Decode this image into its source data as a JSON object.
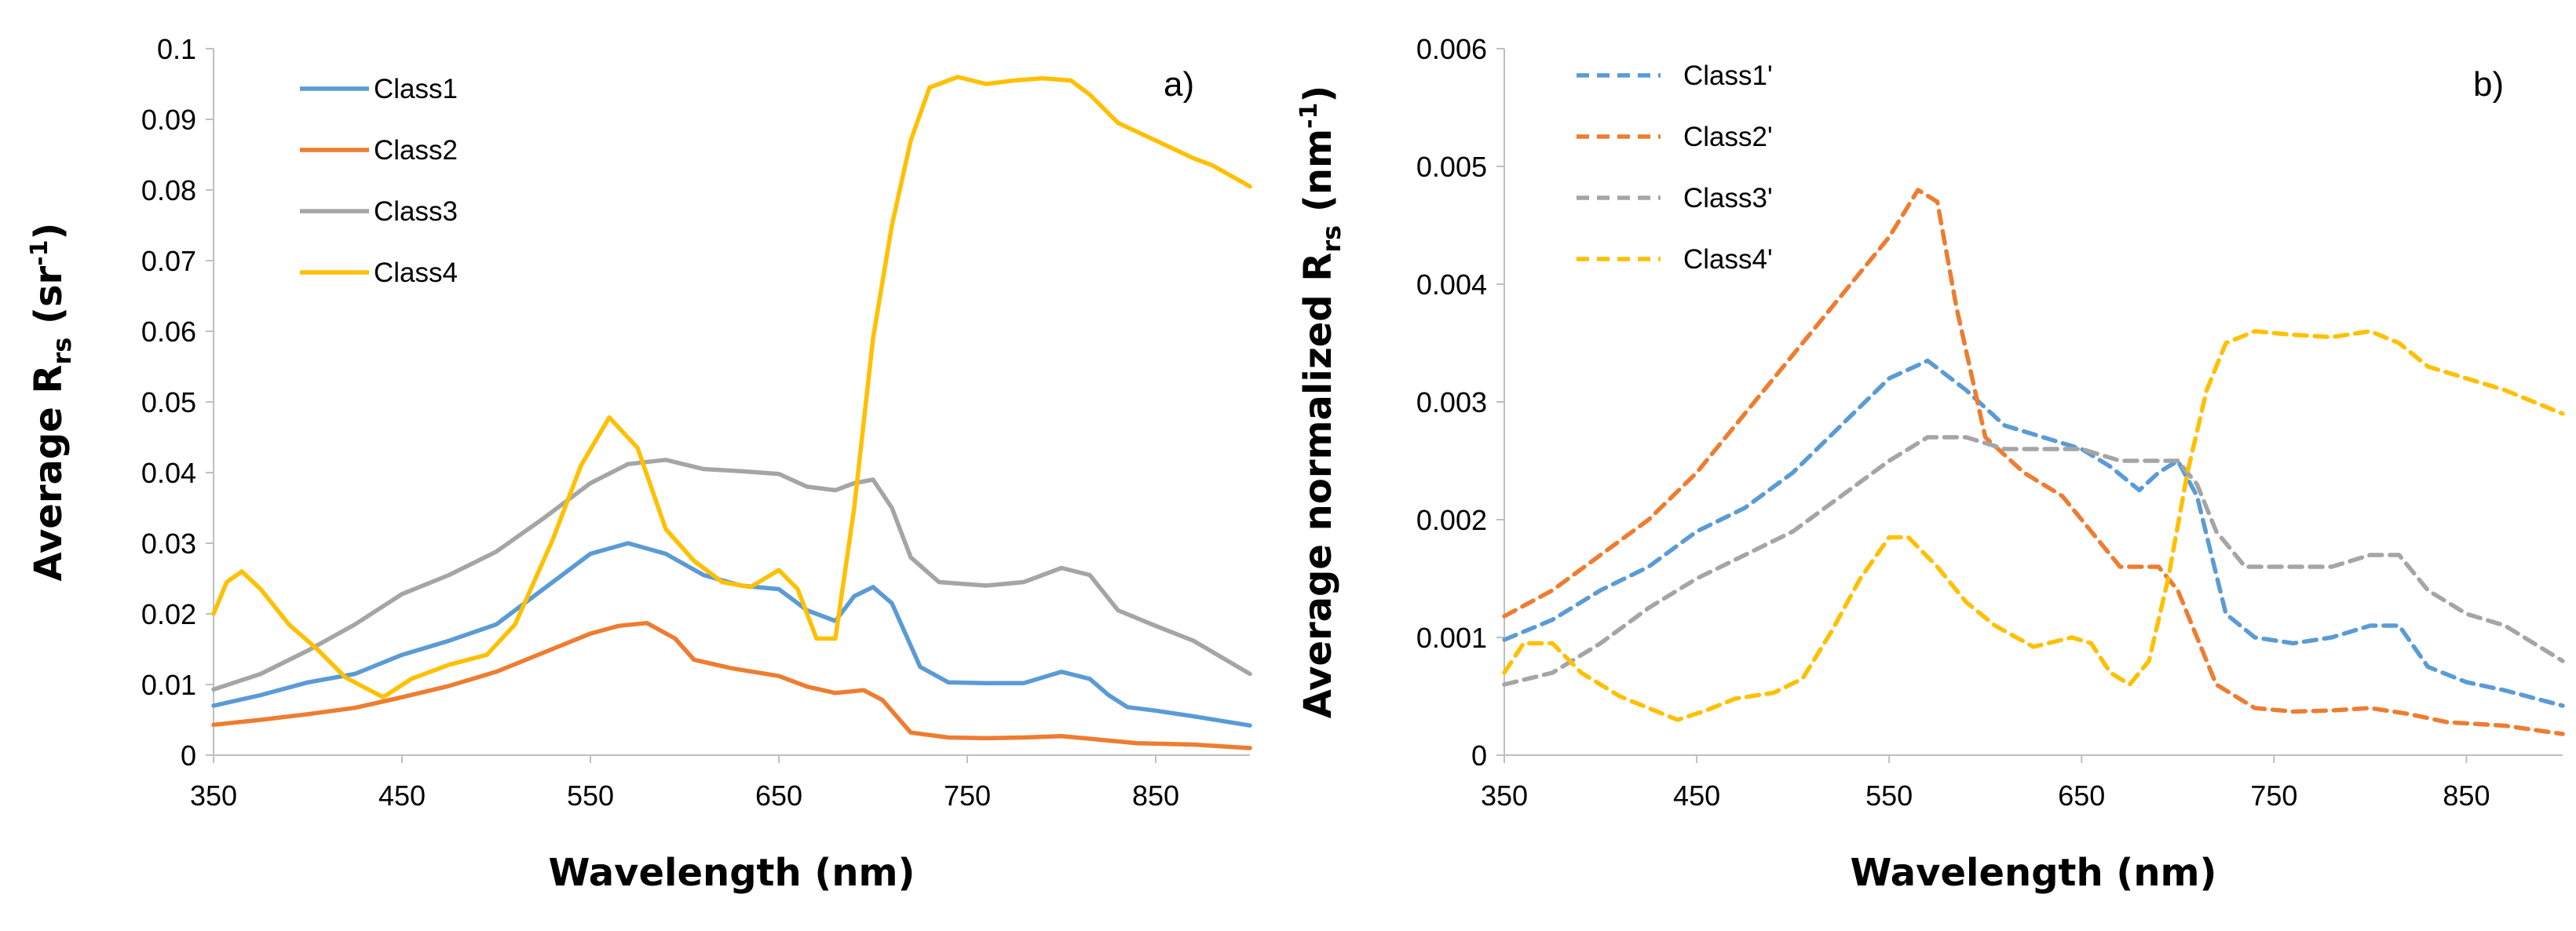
{
  "chart_data": [
    {
      "type": "line",
      "panel_label": "a)",
      "title": "",
      "xlabel": "Wavelength (nm)",
      "ylabel": {
        "main": "Average R",
        "sub": "rs",
        "unit_open": " (sr",
        "unit_sup": "-1",
        "unit_close": ")"
      },
      "xlim": [
        350,
        900
      ],
      "ylim": [
        0,
        0.1
      ],
      "xticks": [
        350,
        450,
        550,
        650,
        750,
        850
      ],
      "xtick_labels": [
        "350",
        "450",
        "550",
        "650",
        "750",
        "850"
      ],
      "yticks": [
        0,
        0.01,
        0.02,
        0.03,
        0.04,
        0.05,
        0.06,
        0.07,
        0.08,
        0.09,
        0.1
      ],
      "ytick_labels": [
        "0",
        "0.01",
        "0.02",
        "0.03",
        "0.04",
        "0.05",
        "0.06",
        "0.07",
        "0.08",
        "0.09",
        "0.1"
      ],
      "grid": false,
      "legend_position": "top-left",
      "series": [
        {
          "name": "Class1",
          "color": "#5b9bd5",
          "dashed": false,
          "x": [
            350,
            375,
            400,
            425,
            450,
            475,
            500,
            525,
            550,
            570,
            590,
            610,
            630,
            650,
            665,
            680,
            690,
            700,
            710,
            725,
            740,
            760,
            780,
            800,
            815,
            825,
            835,
            850,
            870,
            900
          ],
          "y": [
            0.007,
            0.0085,
            0.0103,
            0.0115,
            0.0142,
            0.0162,
            0.0185,
            0.0235,
            0.0285,
            0.03,
            0.0285,
            0.0255,
            0.024,
            0.0235,
            0.0205,
            0.019,
            0.0225,
            0.0238,
            0.0215,
            0.0125,
            0.0103,
            0.0102,
            0.0102,
            0.0118,
            0.0108,
            0.0085,
            0.0068,
            0.0063,
            0.0055,
            0.0042
          ]
        },
        {
          "name": "Class2",
          "color": "#ed7d31",
          "dashed": false,
          "x": [
            350,
            375,
            400,
            425,
            450,
            475,
            500,
            525,
            550,
            565,
            580,
            595,
            605,
            625,
            650,
            665,
            680,
            695,
            705,
            720,
            740,
            760,
            780,
            800,
            820,
            840,
            870,
            900
          ],
          "y": [
            0.0043,
            0.005,
            0.0058,
            0.0067,
            0.0082,
            0.0098,
            0.0118,
            0.0145,
            0.0172,
            0.0183,
            0.0187,
            0.0165,
            0.0135,
            0.0123,
            0.0112,
            0.0097,
            0.0088,
            0.0092,
            0.0078,
            0.0032,
            0.0025,
            0.0024,
            0.0025,
            0.0027,
            0.0022,
            0.0017,
            0.0015,
            0.001
          ]
        },
        {
          "name": "Class3",
          "color": "#a5a5a5",
          "dashed": false,
          "x": [
            350,
            375,
            400,
            425,
            450,
            475,
            500,
            525,
            550,
            570,
            590,
            610,
            630,
            650,
            665,
            680,
            690,
            700,
            710,
            720,
            735,
            760,
            780,
            800,
            815,
            830,
            850,
            870,
            900
          ],
          "y": [
            0.0093,
            0.0115,
            0.0148,
            0.0185,
            0.0228,
            0.0255,
            0.0288,
            0.0335,
            0.0385,
            0.0412,
            0.0418,
            0.0405,
            0.0402,
            0.0398,
            0.038,
            0.0375,
            0.0385,
            0.039,
            0.035,
            0.028,
            0.0245,
            0.024,
            0.0245,
            0.0265,
            0.0255,
            0.0205,
            0.0183,
            0.0162,
            0.0115
          ]
        },
        {
          "name": "Class4",
          "color": "#ffc000",
          "dashed": false,
          "x": [
            350,
            357,
            365,
            375,
            390,
            405,
            420,
            440,
            455,
            475,
            495,
            510,
            530,
            545,
            560,
            575,
            590,
            605,
            620,
            635,
            650,
            660,
            670,
            680,
            690,
            700,
            710,
            720,
            730,
            745,
            760,
            775,
            790,
            805,
            815,
            830,
            850,
            870,
            880,
            900
          ],
          "y": [
            0.02,
            0.0245,
            0.026,
            0.0235,
            0.0185,
            0.015,
            0.011,
            0.0082,
            0.0108,
            0.0128,
            0.0142,
            0.0185,
            0.0305,
            0.041,
            0.0478,
            0.0435,
            0.032,
            0.0275,
            0.0245,
            0.0238,
            0.0262,
            0.0235,
            0.0165,
            0.0165,
            0.035,
            0.059,
            0.075,
            0.087,
            0.0945,
            0.096,
            0.095,
            0.0955,
            0.0958,
            0.0955,
            0.0935,
            0.0895,
            0.087,
            0.0845,
            0.0835,
            0.0805
          ]
        }
      ]
    },
    {
      "type": "line",
      "panel_label": "b)",
      "title": "",
      "xlabel": "Wavelength (nm)",
      "ylabel": {
        "main": "Average normalized  R",
        "sub": "rs",
        "unit_open": " (nm",
        "unit_sup": "-1",
        "unit_close": ")"
      },
      "xlim": [
        350,
        900
      ],
      "ylim": [
        0,
        0.006
      ],
      "xticks": [
        350,
        450,
        550,
        650,
        750,
        850
      ],
      "xtick_labels": [
        "350",
        "450",
        "550",
        "650",
        "750",
        "850"
      ],
      "yticks": [
        0,
        0.001,
        0.002,
        0.003,
        0.004,
        0.005,
        0.006
      ],
      "ytick_labels": [
        "0",
        "0.001",
        "0.002",
        "0.003",
        "0.004",
        "0.005",
        "0.006"
      ],
      "grid": false,
      "legend_position": "top-left",
      "series": [
        {
          "name": "Class1'",
          "color": "#5b9bd5",
          "dashed": true,
          "x": [
            350,
            375,
            400,
            425,
            450,
            475,
            500,
            525,
            550,
            570,
            590,
            610,
            630,
            650,
            665,
            680,
            690,
            700,
            710,
            725,
            740,
            760,
            780,
            800,
            815,
            830,
            850,
            870,
            900
          ],
          "y": [
            0.00098,
            0.00115,
            0.0014,
            0.0016,
            0.0019,
            0.0021,
            0.0024,
            0.0028,
            0.0032,
            0.00335,
            0.0031,
            0.0028,
            0.0027,
            0.0026,
            0.00245,
            0.00225,
            0.0024,
            0.0025,
            0.0022,
            0.0012,
            0.001,
            0.00095,
            0.001,
            0.0011,
            0.0011,
            0.00075,
            0.00062,
            0.00055,
            0.00042
          ]
        },
        {
          "name": "Class2'",
          "color": "#ed7d31",
          "dashed": true,
          "x": [
            350,
            375,
            400,
            425,
            450,
            475,
            500,
            525,
            550,
            565,
            575,
            585,
            600,
            620,
            640,
            655,
            670,
            690,
            700,
            720,
            740,
            760,
            780,
            800,
            820,
            840,
            870,
            900
          ],
          "y": [
            0.00118,
            0.0014,
            0.0017,
            0.002,
            0.0024,
            0.0029,
            0.0034,
            0.0039,
            0.0044,
            0.0048,
            0.0047,
            0.0038,
            0.0027,
            0.0024,
            0.0022,
            0.0019,
            0.0016,
            0.0016,
            0.0014,
            0.0006,
            0.0004,
            0.00037,
            0.00038,
            0.0004,
            0.00035,
            0.00028,
            0.00025,
            0.00018
          ]
        },
        {
          "name": "Class3'",
          "color": "#a5a5a5",
          "dashed": true,
          "x": [
            350,
            375,
            400,
            425,
            450,
            475,
            500,
            525,
            550,
            570,
            590,
            610,
            630,
            650,
            670,
            690,
            700,
            710,
            720,
            735,
            760,
            780,
            800,
            815,
            830,
            850,
            870,
            900
          ],
          "y": [
            0.0006,
            0.0007,
            0.00095,
            0.00125,
            0.0015,
            0.0017,
            0.0019,
            0.0022,
            0.0025,
            0.0027,
            0.0027,
            0.0026,
            0.0026,
            0.0026,
            0.0025,
            0.0025,
            0.0025,
            0.0023,
            0.0019,
            0.0016,
            0.0016,
            0.0016,
            0.0017,
            0.0017,
            0.0014,
            0.0012,
            0.0011,
            0.0008
          ]
        },
        {
          "name": "Class4'",
          "color": "#ffc000",
          "dashed": true,
          "x": [
            350,
            360,
            375,
            390,
            410,
            425,
            440,
            455,
            470,
            490,
            505,
            520,
            535,
            550,
            560,
            575,
            590,
            605,
            625,
            645,
            655,
            665,
            675,
            685,
            695,
            705,
            715,
            725,
            740,
            760,
            780,
            800,
            815,
            830,
            850,
            870,
            900
          ],
          "y": [
            0.0007,
            0.00095,
            0.00095,
            0.0007,
            0.0005,
            0.0004,
            0.0003,
            0.00038,
            0.00048,
            0.00053,
            0.00065,
            0.00105,
            0.0015,
            0.00185,
            0.00185,
            0.0016,
            0.0013,
            0.0011,
            0.00092,
            0.001,
            0.00095,
            0.0007,
            0.0006,
            0.0008,
            0.0015,
            0.0024,
            0.0031,
            0.0035,
            0.0036,
            0.00357,
            0.00355,
            0.0036,
            0.0035,
            0.0033,
            0.0032,
            0.0031,
            0.0029
          ]
        }
      ]
    }
  ]
}
